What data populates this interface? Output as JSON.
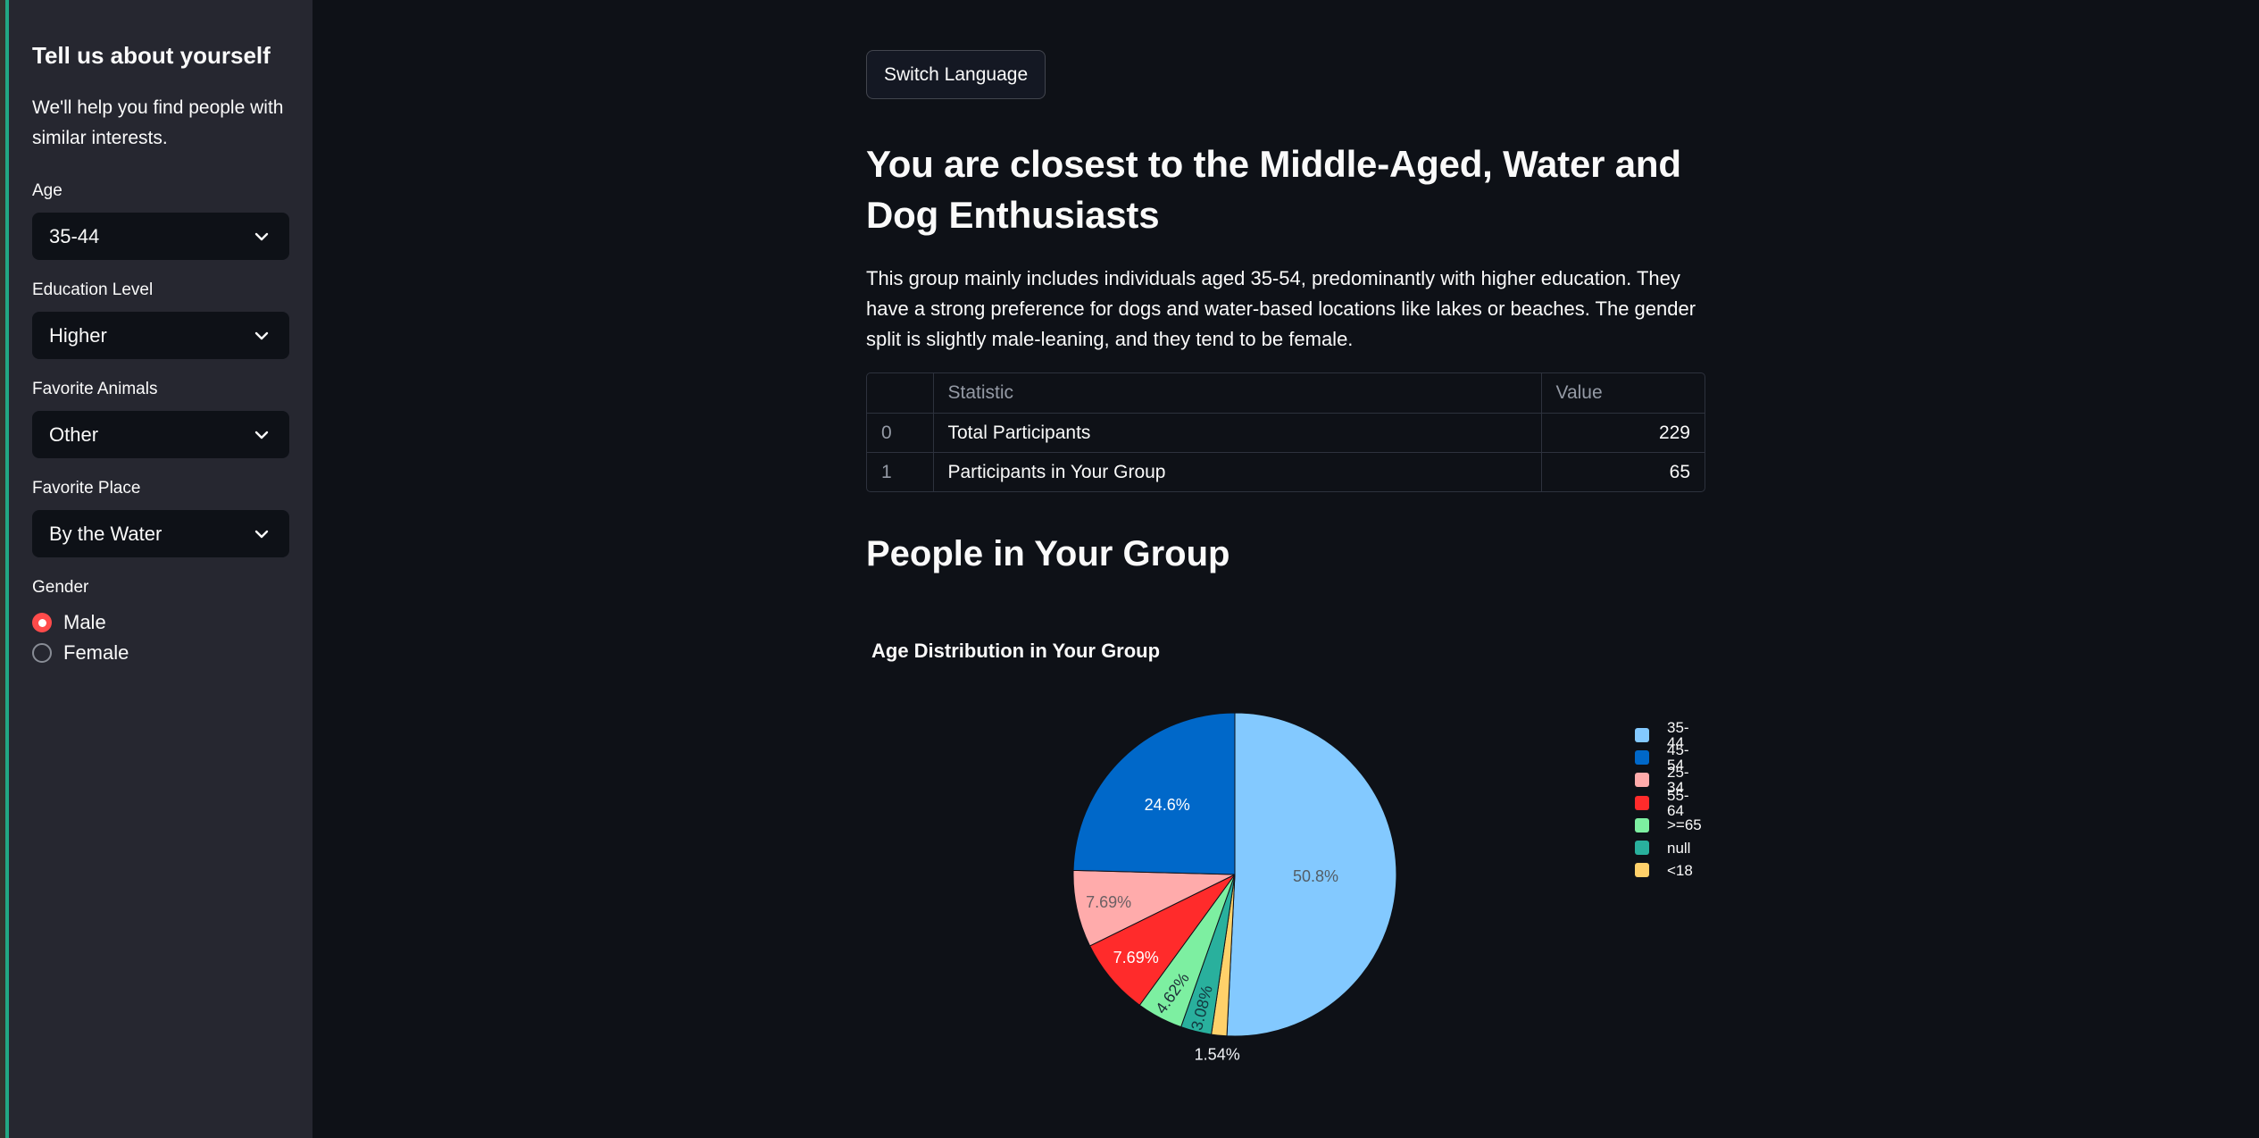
{
  "colors": {
    "page_bg": "#0e1117",
    "sidebar_bg": "#262730",
    "widget_bg": "#0e1117",
    "edge_strip": "#33342e",
    "edge_accent": "#22a783",
    "text": "#fafafa",
    "muted_text": "#949aa5",
    "border": "#2d323d",
    "primary": "#ff4b4b"
  },
  "sidebar": {
    "title": "Tell us about yourself",
    "subtitle": "We'll help you find people with similar interests.",
    "fields": [
      {
        "label": "Age",
        "value": "35-44"
      },
      {
        "label": "Education Level",
        "value": "Higher"
      },
      {
        "label": "Favorite Animals",
        "value": "Other"
      },
      {
        "label": "Favorite Place",
        "value": "By the Water"
      }
    ],
    "radio_group": {
      "label": "Gender",
      "options": [
        {
          "label": "Male",
          "selected": true
        },
        {
          "label": "Female",
          "selected": false
        }
      ]
    }
  },
  "main": {
    "switch_language_button": "Switch Language",
    "heading": "You are closest to the Middle-Aged, Water and Dog Enthusiasts",
    "description": "This group mainly includes individuals aged 35-54, predominantly with higher education. They have a strong preference for dogs and water-based locations like lakes or beaches. The gender split is slightly male-leaning, and they tend to be female.",
    "table": {
      "columns": [
        "",
        "Statistic",
        "Value"
      ],
      "rows": [
        {
          "index": "0",
          "statistic": "Total Participants",
          "value": "229"
        },
        {
          "index": "1",
          "statistic": "Participants in Your Group",
          "value": "65"
        }
      ]
    },
    "section_heading": "People in Your Group"
  },
  "chart_data": {
    "type": "pie",
    "title": "Age Distribution in Your Group",
    "legend_position": "right",
    "label_font_size": 18,
    "categories": [
      "35-44",
      "45-54",
      "25-34",
      "55-64",
      ">=65",
      "null",
      "<18"
    ],
    "values": [
      50.8,
      24.6,
      7.69,
      7.69,
      4.62,
      3.08,
      1.54
    ],
    "slices": [
      {
        "label": "35-44",
        "value": 50.8,
        "pct_label": "50.8%",
        "color": "#83c9ff",
        "label_color": "#535d66",
        "label_r": 0.5,
        "label_rotation": 0
      },
      {
        "label": "<18",
        "value": 1.54,
        "pct_label": "1.54%",
        "color": "#ffd16a",
        "label_color": "#f2f4f8",
        "label_r": 1.12,
        "label_rotation": 0
      },
      {
        "label": "null",
        "value": 3.08,
        "pct_label": "3.08%",
        "color": "#29b09d",
        "label_color": "#123a40",
        "label_r": 0.85,
        "label_rotation": -76
      },
      {
        "label": ">=65",
        "value": 4.62,
        "pct_label": "4.62%",
        "color": "#7defa1",
        "label_color": "#1d3038",
        "label_r": 0.83,
        "label_rotation": -55
      },
      {
        "label": "55-64",
        "value": 7.69,
        "pct_label": "7.69%",
        "color": "#ff2b2b",
        "label_color": "#ffffff",
        "label_r": 0.8,
        "label_rotation": 0
      },
      {
        "label": "25-34",
        "value": 7.69,
        "pct_label": "7.69%",
        "color": "#ffabab",
        "label_color": "#6b6064",
        "label_r": 0.8,
        "label_rotation": 0
      },
      {
        "label": "45-54",
        "value": 24.6,
        "pct_label": "24.6%",
        "color": "#0068c9",
        "label_color": "#ffffff",
        "label_r": 0.6,
        "label_rotation": 0
      }
    ],
    "legend": [
      {
        "label": "35-44",
        "color": "#83c9ff"
      },
      {
        "label": "45-54",
        "color": "#0068c9"
      },
      {
        "label": "25-34",
        "color": "#ffabab"
      },
      {
        "label": "55-64",
        "color": "#ff2b2b"
      },
      {
        "label": ">=65",
        "color": "#7defa1"
      },
      {
        "label": "null",
        "color": "#29b09d"
      },
      {
        "label": "<18",
        "color": "#ffd16a"
      }
    ]
  }
}
